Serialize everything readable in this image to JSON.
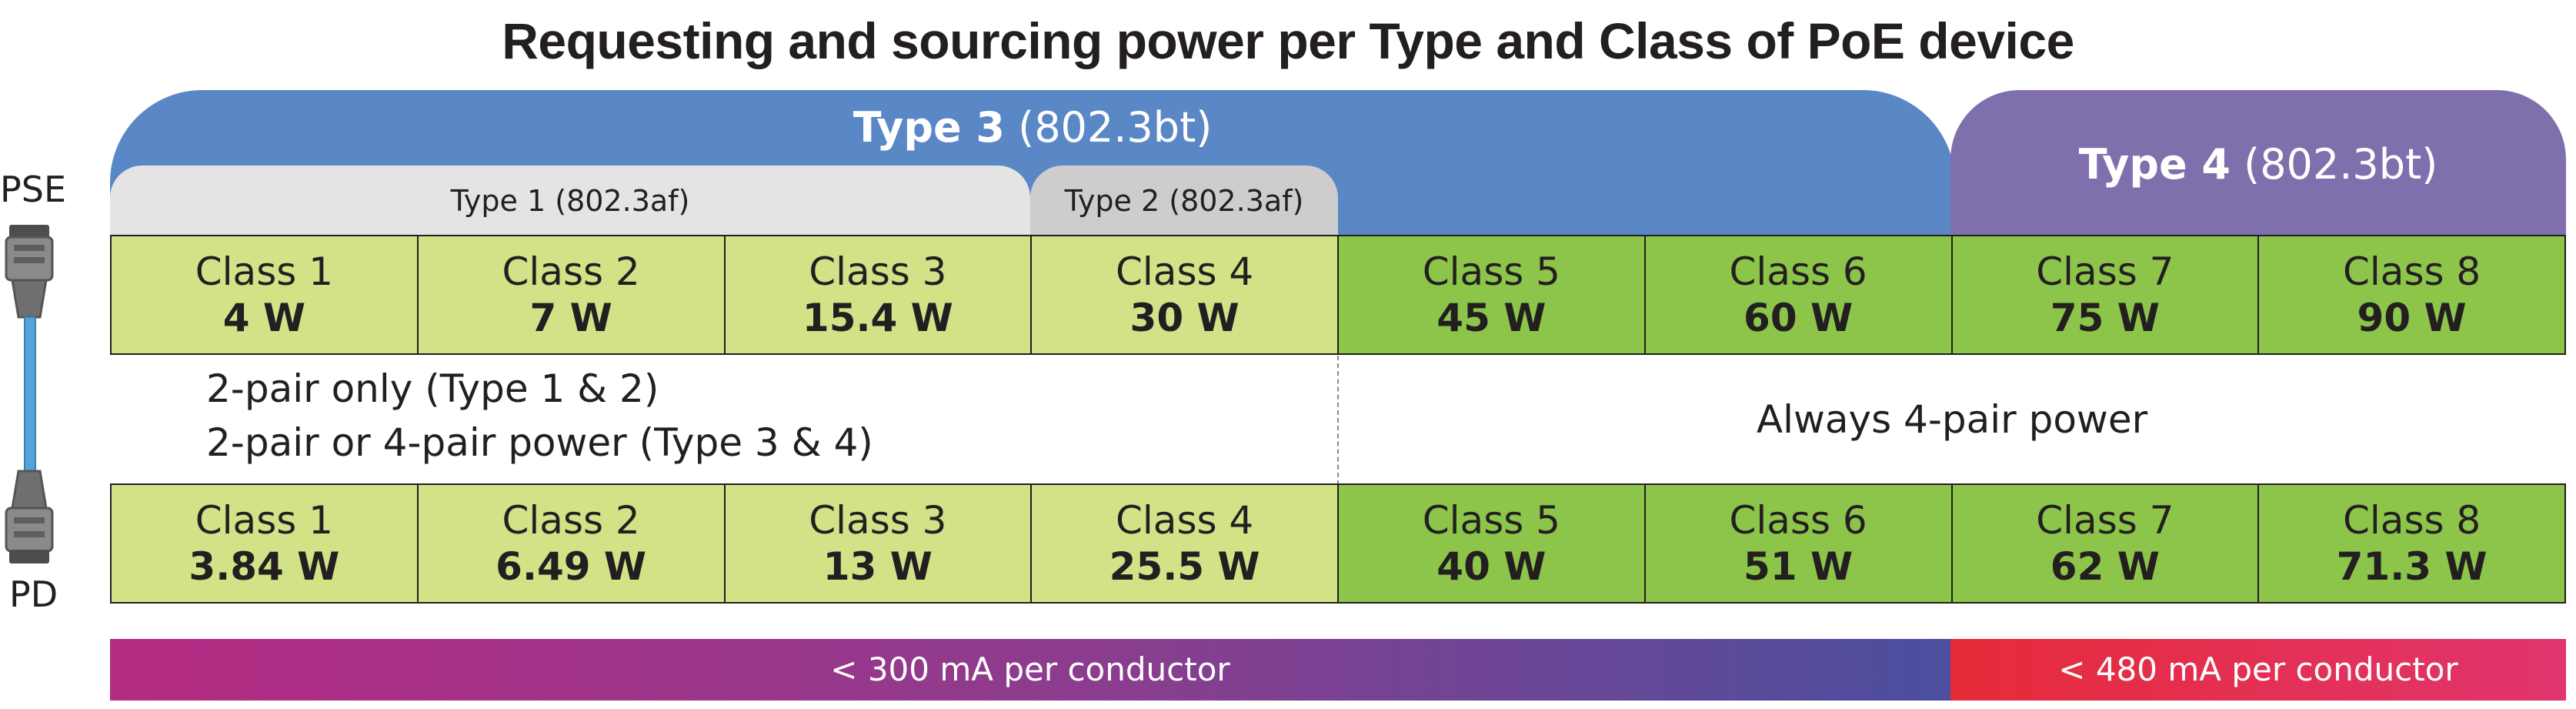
{
  "title": "Requesting and sourcing power per Type and Class of PoE device",
  "types": {
    "type3": {
      "name": "Type 3",
      "std": " (802.3bt)"
    },
    "type4": {
      "name": "Type 4",
      "std": " (802.3bt)"
    },
    "type1": {
      "label": "Type 1 (802.3af)"
    },
    "type2": {
      "label": "Type 2 (802.3af)"
    }
  },
  "sides": {
    "pse": "PSE",
    "pd": "PD"
  },
  "pse_row": [
    {
      "class": "Class 1",
      "power": "4 W",
      "shade": "light"
    },
    {
      "class": "Class 2",
      "power": "7 W",
      "shade": "light"
    },
    {
      "class": "Class 3",
      "power": "15.4 W",
      "shade": "light"
    },
    {
      "class": "Class 4",
      "power": "30 W",
      "shade": "light"
    },
    {
      "class": "Class 5",
      "power": "45 W",
      "shade": "dark"
    },
    {
      "class": "Class 6",
      "power": "60 W",
      "shade": "dark"
    },
    {
      "class": "Class 7",
      "power": "75 W",
      "shade": "dark"
    },
    {
      "class": "Class 8",
      "power": "90 W",
      "shade": "dark"
    }
  ],
  "pd_row": [
    {
      "class": "Class 1",
      "power": "3.84 W",
      "shade": "light"
    },
    {
      "class": "Class 2",
      "power": "6.49 W",
      "shade": "light"
    },
    {
      "class": "Class 3",
      "power": "13 W",
      "shade": "light"
    },
    {
      "class": "Class 4",
      "power": "25.5 W",
      "shade": "light"
    },
    {
      "class": "Class 5",
      "power": "40 W",
      "shade": "dark"
    },
    {
      "class": "Class 6",
      "power": "51 W",
      "shade": "dark"
    },
    {
      "class": "Class 7",
      "power": "62 W",
      "shade": "dark"
    },
    {
      "class": "Class 8",
      "power": "71.3 W",
      "shade": "dark"
    }
  ],
  "notes": {
    "left_line1": "2-pair only (Type 1 & 2)",
    "left_line2": "2-pair or 4-pair power (Type 3 & 4)",
    "right": "Always 4-pair power"
  },
  "current_bars": {
    "left": "< 300 mA per conductor",
    "right": "< 480 mA per conductor"
  },
  "colors": {
    "type3": "#5a87c6",
    "type4": "#7f6fac",
    "class_light": "#d1e287",
    "class_dark": "#8dc54b",
    "bar_left_start": "#b52b83",
    "bar_left_end": "#4b4e9e",
    "bar_right_start": "#e62b38",
    "bar_right_end": "#e0346e"
  },
  "icons": {
    "connector": "ethernet-cable-icon"
  }
}
